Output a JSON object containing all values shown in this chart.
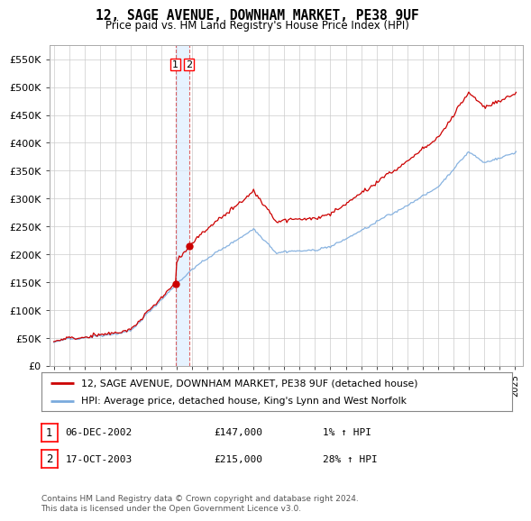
{
  "title": "12, SAGE AVENUE, DOWNHAM MARKET, PE38 9UF",
  "subtitle": "Price paid vs. HM Land Registry's House Price Index (HPI)",
  "legend_line1": "12, SAGE AVENUE, DOWNHAM MARKET, PE38 9UF (detached house)",
  "legend_line2": "HPI: Average price, detached house, King's Lynn and West Norfolk",
  "table_rows": [
    {
      "num": "1",
      "date": "06-DEC-2002",
      "price": "£147,000",
      "change": "1% ↑ HPI"
    },
    {
      "num": "2",
      "date": "17-OCT-2003",
      "price": "£215,000",
      "change": "28% ↑ HPI"
    }
  ],
  "footnote": "Contains HM Land Registry data © Crown copyright and database right 2024.\nThis data is licensed under the Open Government Licence v3.0.",
  "sale1_year": 2002.917,
  "sale1_price": 147000,
  "sale2_year": 2003.792,
  "sale2_price": 215000,
  "ylim": [
    0,
    575000
  ],
  "xlim_start": 1994.7,
  "xlim_end": 2025.5,
  "yticks": [
    0,
    50000,
    100000,
    150000,
    200000,
    250000,
    300000,
    350000,
    400000,
    450000,
    500000,
    550000
  ],
  "ytick_labels": [
    "£0",
    "£50K",
    "£100K",
    "£150K",
    "£200K",
    "£250K",
    "£300K",
    "£350K",
    "£400K",
    "£450K",
    "£500K",
    "£550K"
  ],
  "red_color": "#cc0000",
  "blue_color": "#7aaadd",
  "shade_color": "#ddeeff",
  "grid_color": "#cccccc",
  "background_color": "#ffffff"
}
